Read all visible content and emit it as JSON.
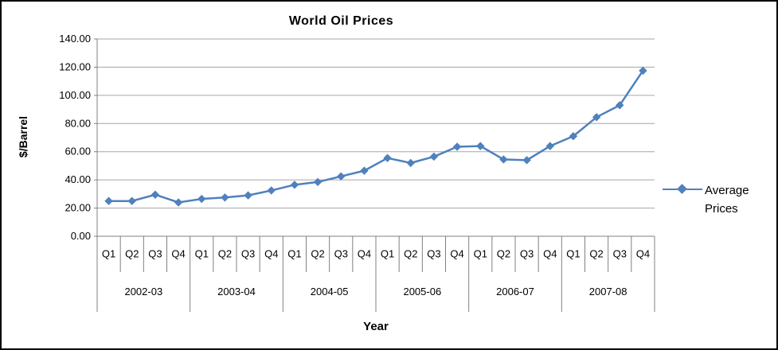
{
  "chart": {
    "background": "#ffffff",
    "frame_color": "#000000"
  },
  "chart_data": {
    "type": "line",
    "title": "World Oil Prices",
    "xlabel": "Year",
    "ylabel": "$/Barrel",
    "ylim": [
      0,
      140
    ],
    "ytick_step": 20,
    "ytick_decimals": 2,
    "ytick_labels": [
      "0.00",
      "20.00",
      "40.00",
      "60.00",
      "80.00",
      "100.00",
      "120.00",
      "140.00"
    ],
    "grid": true,
    "gridline_color": "#a6a6a6",
    "axis_color": "#808080",
    "legend_position": "right",
    "categories_quarters": [
      "Q1",
      "Q2",
      "Q3",
      "Q4",
      "Q1",
      "Q2",
      "Q3",
      "Q4",
      "Q1",
      "Q2",
      "Q3",
      "Q4",
      "Q1",
      "Q2",
      "Q3",
      "Q4",
      "Q1",
      "Q2",
      "Q3",
      "Q4",
      "Q1",
      "Q2",
      "Q3",
      "Q4"
    ],
    "year_groups": [
      "2002-03",
      "2003-04",
      "2004-05",
      "2005-06",
      "2006-07",
      "2007-08"
    ],
    "series": [
      {
        "name": "Average Prices",
        "color": "#4f81bd",
        "marker": "diamond",
        "values": [
          25.0,
          25.0,
          29.5,
          24.0,
          26.5,
          27.5,
          29.0,
          32.5,
          36.5,
          38.5,
          42.5,
          46.5,
          55.5,
          52.0,
          56.5,
          63.5,
          64.0,
          54.5,
          54.0,
          64.0,
          71.0,
          84.5,
          93.0,
          117.5
        ]
      }
    ]
  }
}
